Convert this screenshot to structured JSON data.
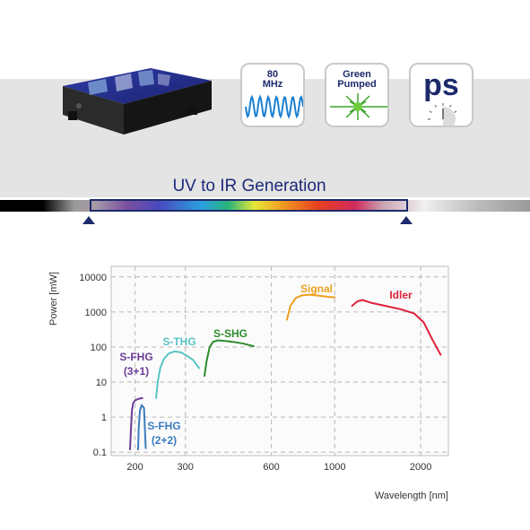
{
  "header": {
    "badges": [
      {
        "lines": [
          "80",
          "MHz"
        ],
        "icon": "sine-wave-icon"
      },
      {
        "lines": [
          "Green",
          "Pumped"
        ],
        "icon": "green-laser-burst-icon"
      },
      {
        "lines": [
          "ps"
        ],
        "icon": "clock-dial-icon"
      }
    ],
    "spectrum_title": "UV to IR Generation"
  },
  "colors": {
    "navy": "#1d2a6c",
    "wave_blue": "#1a7fd0",
    "laser_green": "#3fa62e",
    "s_fhg_31": "#6b3d97",
    "s_fhg_22": "#3b7cbf",
    "s_thg": "#58c4c4",
    "s_shg": "#2e8b2e",
    "signal": "#f0a020",
    "idler": "#e0203c"
  },
  "chart_data": {
    "type": "line",
    "xlabel": "Wavelength [nm]",
    "ylabel": "Power [mW]",
    "xscale": "log",
    "yscale": "log",
    "xlim": [
      165,
      2500
    ],
    "ylim": [
      0.08,
      20000
    ],
    "x_ticks": [
      200,
      300,
      600,
      1000,
      2000
    ],
    "x_tick_labels": [
      "200",
      "300",
      "600",
      "1000",
      "2000"
    ],
    "y_ticks": [
      0.1,
      1,
      10,
      100,
      1000,
      10000
    ],
    "y_tick_labels": [
      "0.1",
      "1",
      "10",
      "100",
      "1000",
      "10000"
    ],
    "grid": true,
    "series": [
      {
        "name": "S-FHG (3+1)",
        "color": "#6b3d97",
        "label_lines": [
          "S-FHG",
          "(3+1)"
        ],
        "x": [
          192,
          193,
          195,
          197,
          200,
          205,
          212
        ],
        "y": [
          0.12,
          0.3,
          1.5,
          2.5,
          3.0,
          3.3,
          3.5
        ]
      },
      {
        "name": "S-FHG (2+2)",
        "color": "#3b7cbf",
        "label_lines": [
          "S-FHG",
          "(2+2)"
        ],
        "x": [
          205,
          206,
          208,
          211,
          215,
          218
        ],
        "y": [
          0.12,
          0.5,
          1.5,
          2.2,
          1.8,
          0.13
        ]
      },
      {
        "name": "S-THG",
        "color": "#58c4c4",
        "label_lines": [
          "S-THG"
        ],
        "x": [
          237,
          240,
          245,
          252,
          262,
          275,
          290,
          305,
          320,
          335
        ],
        "y": [
          3.5,
          10,
          25,
          45,
          65,
          75,
          70,
          55,
          42,
          25
        ]
      },
      {
        "name": "S-SHG",
        "color": "#2e8b2e",
        "label_lines": [
          "S-SHG"
        ],
        "x": [
          350,
          356,
          365,
          375,
          390,
          410,
          440,
          480,
          520
        ],
        "y": [
          15,
          40,
          100,
          140,
          155,
          150,
          140,
          125,
          105
        ]
      },
      {
        "name": "Signal",
        "color": "#f0a020",
        "label_lines": [
          "Signal"
        ],
        "x": [
          680,
          700,
          730,
          770,
          820,
          880,
          950,
          1000
        ],
        "y": [
          600,
          1500,
          2500,
          3000,
          3100,
          2900,
          2700,
          2600
        ]
      },
      {
        "name": "Idler",
        "color": "#e0203c",
        "label_lines": [
          "Idler"
        ],
        "x": [
          1150,
          1200,
          1250,
          1350,
          1500,
          1700,
          1900,
          2050,
          2200,
          2350
        ],
        "y": [
          1500,
          2000,
          2200,
          1800,
          1500,
          1200,
          900,
          500,
          160,
          60
        ]
      }
    ]
  }
}
